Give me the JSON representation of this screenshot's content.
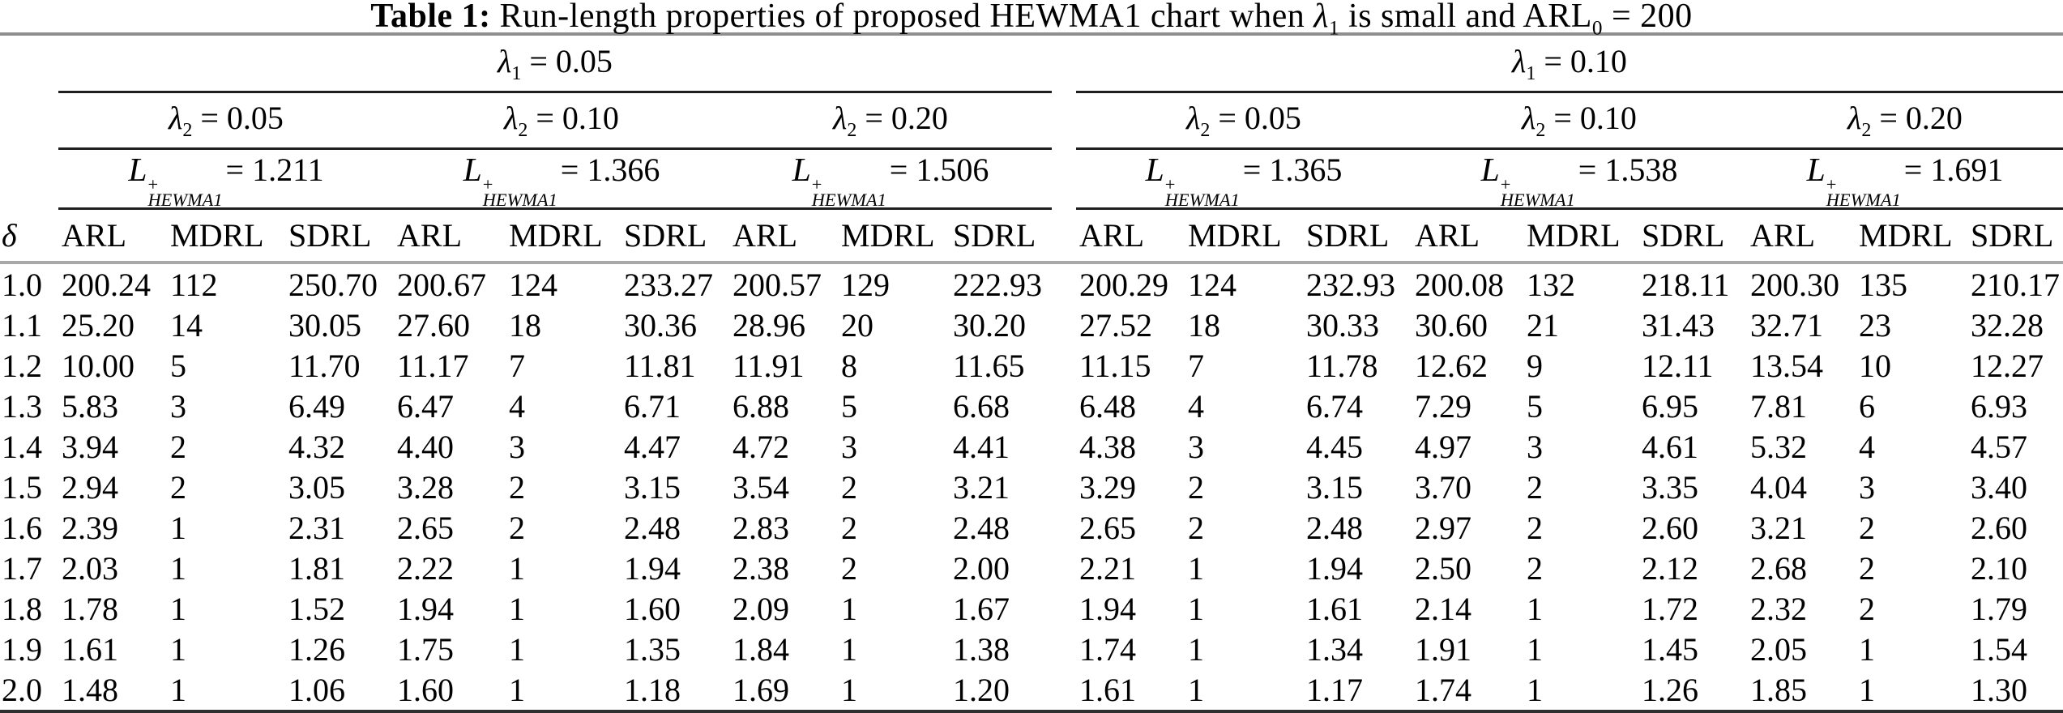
{
  "title": {
    "bold": "Table 1:",
    "part1": " Run-length properties of proposed HEWMA1 chart when ",
    "lambda_sym": "λ",
    "lambda_sub": "1",
    "part2": " is small and ",
    "arl": "ARL",
    "arl_sub": "0",
    "part3": " = 200"
  },
  "header": {
    "lambda1_groups": [
      {
        "sym": "λ",
        "sub": "1",
        "eq": " = 0.05"
      },
      {
        "sym": "λ",
        "sub": "1",
        "eq": " = 0.10"
      }
    ],
    "lambda2_groups": [
      {
        "sym": "λ",
        "sub": "2",
        "eq": " = 0.05"
      },
      {
        "sym": "λ",
        "sub": "2",
        "eq": " = 0.10"
      },
      {
        "sym": "λ",
        "sub": "2",
        "eq": " = 0.20"
      },
      {
        "sym": "λ",
        "sub": "2",
        "eq": " = 0.05"
      },
      {
        "sym": "λ",
        "sub": "2",
        "eq": " = 0.10"
      },
      {
        "sym": "λ",
        "sub": "2",
        "eq": " = 0.20"
      }
    ],
    "L_groups": [
      {
        "letter": "L",
        "sup": "+",
        "sub": "HEWMA1",
        "eq": "= 1.211"
      },
      {
        "letter": "L",
        "sup": "+",
        "sub": "HEWMA1",
        "eq": "= 1.366"
      },
      {
        "letter": "L",
        "sup": "+",
        "sub": "HEWMA1",
        "eq": "= 1.506"
      },
      {
        "letter": "L",
        "sup": "+",
        "sub": "HEWMA1",
        "eq": "= 1.365"
      },
      {
        "letter": "L",
        "sup": "+",
        "sub": "HEWMA1",
        "eq": "= 1.538"
      },
      {
        "letter": "L",
        "sup": "+",
        "sub": "HEWMA1",
        "eq": "= 1.691"
      }
    ],
    "columns": [
      "δ",
      "ARL",
      "MDRL",
      "SDRL",
      "ARL",
      "MDRL",
      "SDRL",
      "ARL",
      "MDRL",
      "SDRL",
      "ARL",
      "MDRL",
      "SDRL",
      "ARL",
      "MDRL",
      "SDRL",
      "ARL",
      "MDRL",
      "SDRL"
    ]
  },
  "table": {
    "rows": [
      {
        "delta": "1.0",
        "values": [
          "200.24",
          "112",
          "250.70",
          "200.67",
          "124",
          "233.27",
          "200.57",
          "129",
          "222.93",
          "200.29",
          "124",
          "232.93",
          "200.08",
          "132",
          "218.11",
          "200.30",
          "135",
          "210.17"
        ]
      },
      {
        "delta": "1.1",
        "values": [
          "25.20",
          "14",
          "30.05",
          "27.60",
          "18",
          "30.36",
          "28.96",
          "20",
          "30.20",
          "27.52",
          "18",
          "30.33",
          "30.60",
          "21",
          "31.43",
          "32.71",
          "23",
          "32.28"
        ]
      },
      {
        "delta": "1.2",
        "values": [
          "10.00",
          "5",
          "11.70",
          "11.17",
          "7",
          "11.81",
          "11.91",
          "8",
          "11.65",
          "11.15",
          "7",
          "11.78",
          "12.62",
          "9",
          "12.11",
          "13.54",
          "10",
          "12.27"
        ]
      },
      {
        "delta": "1.3",
        "values": [
          "5.83",
          "3",
          "6.49",
          "6.47",
          "4",
          "6.71",
          "6.88",
          "5",
          "6.68",
          "6.48",
          "4",
          "6.74",
          "7.29",
          "5",
          "6.95",
          "7.81",
          "6",
          "6.93"
        ]
      },
      {
        "delta": "1.4",
        "values": [
          "3.94",
          "2",
          "4.32",
          "4.40",
          "3",
          "4.47",
          "4.72",
          "3",
          "4.41",
          "4.38",
          "3",
          "4.45",
          "4.97",
          "3",
          "4.61",
          "5.32",
          "4",
          "4.57"
        ]
      },
      {
        "delta": "1.5",
        "values": [
          "2.94",
          "2",
          "3.05",
          "3.28",
          "2",
          "3.15",
          "3.54",
          "2",
          "3.21",
          "3.29",
          "2",
          "3.15",
          "3.70",
          "2",
          "3.35",
          "4.04",
          "3",
          "3.40"
        ]
      },
      {
        "delta": "1.6",
        "values": [
          "2.39",
          "1",
          "2.31",
          "2.65",
          "2",
          "2.48",
          "2.83",
          "2",
          "2.48",
          "2.65",
          "2",
          "2.48",
          "2.97",
          "2",
          "2.60",
          "3.21",
          "2",
          "2.60"
        ]
      },
      {
        "delta": "1.7",
        "values": [
          "2.03",
          "1",
          "1.81",
          "2.22",
          "1",
          "1.94",
          "2.38",
          "2",
          "2.00",
          "2.21",
          "1",
          "1.94",
          "2.50",
          "2",
          "2.12",
          "2.68",
          "2",
          "2.10"
        ]
      },
      {
        "delta": "1.8",
        "values": [
          "1.78",
          "1",
          "1.52",
          "1.94",
          "1",
          "1.60",
          "2.09",
          "1",
          "1.67",
          "1.94",
          "1",
          "1.61",
          "2.14",
          "1",
          "1.72",
          "2.32",
          "2",
          "1.79"
        ]
      },
      {
        "delta": "1.9",
        "values": [
          "1.61",
          "1",
          "1.26",
          "1.75",
          "1",
          "1.35",
          "1.84",
          "1",
          "1.38",
          "1.74",
          "1",
          "1.34",
          "1.91",
          "1",
          "1.45",
          "2.05",
          "1",
          "1.54"
        ]
      },
      {
        "delta": "2.0",
        "values": [
          "1.48",
          "1",
          "1.06",
          "1.60",
          "1",
          "1.18",
          "1.69",
          "1",
          "1.20",
          "1.61",
          "1",
          "1.17",
          "1.74",
          "1",
          "1.26",
          "1.85",
          "1",
          "1.30"
        ]
      }
    ]
  },
  "colors": {
    "text": "#000000",
    "background": "#ffffff",
    "title_rule": "#8f8f8f",
    "group_rule": "#1f1f1f",
    "header_rule": "#a8a8a8",
    "bottom_rule": "#2f2f2f"
  }
}
